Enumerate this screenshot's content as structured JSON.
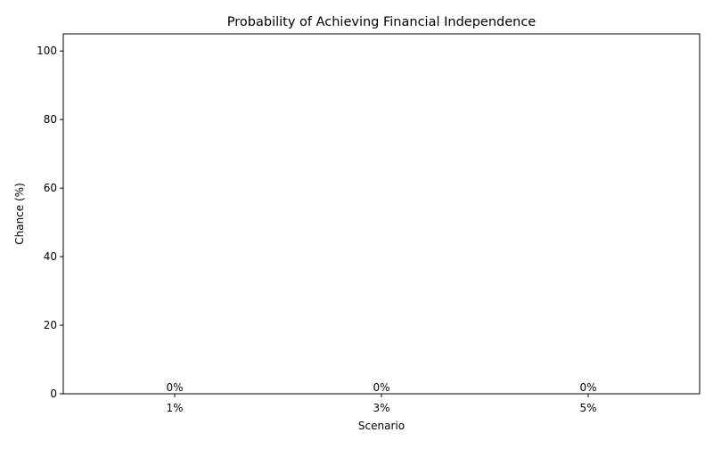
{
  "chart_data": {
    "type": "bar",
    "title": "Probability of Achieving Financial Independence",
    "xlabel": "Scenario",
    "ylabel": "Chance (%)",
    "categories": [
      "1%",
      "3%",
      "5%"
    ],
    "values": [
      0,
      0,
      0
    ],
    "data_labels": [
      "0%",
      "0%",
      "0%"
    ],
    "ylim": [
      0,
      105
    ],
    "yticks": [
      0,
      20,
      40,
      60,
      80,
      100
    ],
    "grid": false,
    "legend": "none",
    "bar_color": "#4caf50"
  }
}
